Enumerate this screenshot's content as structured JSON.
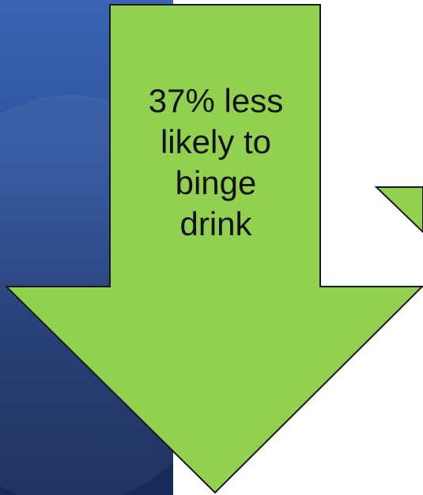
{
  "slide": {
    "panel_color": "#2c4f97",
    "arrow_fill": "#92d050",
    "arrow_stroke": "#1a1a1a",
    "main_arrow": {
      "label_lines": [
        "37% less",
        "likely to",
        "binge",
        "drink"
      ]
    }
  }
}
